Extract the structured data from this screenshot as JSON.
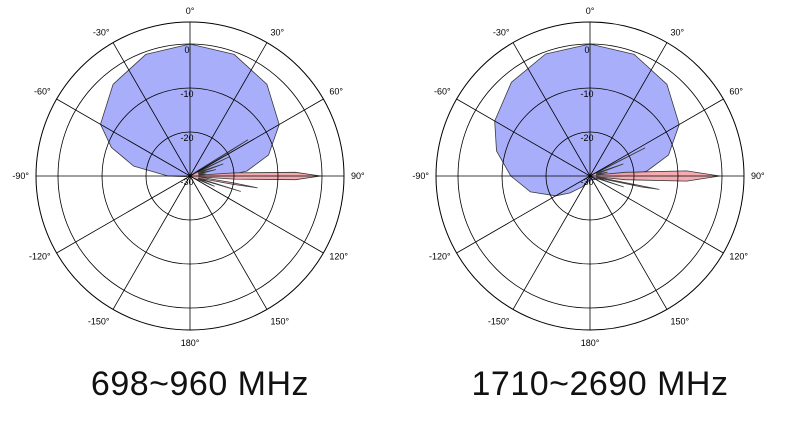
{
  "chart_data": [
    {
      "type": "polar",
      "caption": "698~960 MHz",
      "angle_unit": "degree",
      "angle_zero": "top",
      "angle_ticks": [
        0,
        30,
        60,
        90,
        120,
        150,
        180,
        -150,
        -120,
        -90,
        -60,
        -30
      ],
      "angle_tick_labels": [
        "0°",
        "30°",
        "60°",
        "90°",
        "120°",
        "150°",
        "180°",
        "-150°",
        "-120°",
        "-90°",
        "-60°",
        "-30°"
      ],
      "radial_ticks": [
        0,
        -10,
        -20,
        -30
      ],
      "radial_tick_labels": [
        "0",
        "-10",
        "-20",
        "-30"
      ],
      "rlim": [
        -30,
        5
      ],
      "grid": true,
      "series": [
        {
          "color": "#8f97f7",
          "points": [
            [
              0,
              0
            ],
            [
              20,
              -0.6
            ],
            [
              40,
              -2.8
            ],
            [
              60,
              -6.6
            ],
            [
              75,
              -11.5
            ],
            [
              85,
              -17
            ],
            [
              90,
              -22
            ],
            [
              95,
              -27
            ],
            [
              100,
              -29
            ],
            [
              135,
              -30
            ],
            [
              180,
              -30
            ],
            [
              225,
              -30
            ],
            [
              262,
              -29
            ],
            [
              270,
              -25
            ],
            [
              280,
              -17
            ],
            [
              290,
              -11
            ],
            [
              300,
              -6.5
            ],
            [
              320,
              -2.8
            ],
            [
              340,
              -0.6
            ]
          ]
        },
        {
          "color": "#f3a1a6",
          "points": [
            [
              0,
              -30
            ],
            [
              55,
              -28
            ],
            [
              58,
              -14.5
            ],
            [
              60,
              -28
            ],
            [
              64,
              -20
            ],
            [
              66,
              -28
            ],
            [
              70,
              -22
            ],
            [
              72,
              -28
            ],
            [
              76,
              -24
            ],
            [
              78,
              -28
            ],
            [
              82,
              -26.5
            ],
            [
              84,
              -28
            ],
            [
              86,
              -20
            ],
            [
              88,
              -6
            ],
            [
              90,
              -0.3
            ],
            [
              92,
              -6
            ],
            [
              94,
              -20
            ],
            [
              96,
              -28
            ],
            [
              99,
              -20
            ],
            [
              100,
              -14.5
            ],
            [
              101,
              -20
            ],
            [
              104,
              -28
            ],
            [
              107,
              -18
            ],
            [
              109,
              -28
            ],
            [
              113,
              -24
            ],
            [
              115,
              -28
            ],
            [
              120,
              -29
            ],
            [
              180,
              -30
            ]
          ]
        }
      ]
    },
    {
      "type": "polar",
      "caption": "1710~2690 MHz",
      "angle_unit": "degree",
      "angle_zero": "top",
      "angle_ticks": [
        0,
        30,
        60,
        90,
        120,
        150,
        180,
        -150,
        -120,
        -90,
        -60,
        -30
      ],
      "angle_tick_labels": [
        "0°",
        "30°",
        "60°",
        "90°",
        "120°",
        "150°",
        "180°",
        "-150°",
        "-120°",
        "-90°",
        "-60°",
        "-30°"
      ],
      "radial_ticks": [
        0,
        -10,
        -20,
        -30
      ],
      "radial_tick_labels": [
        "0",
        "-10",
        "-20",
        "-30"
      ],
      "rlim": [
        -30,
        5
      ],
      "grid": true,
      "series": [
        {
          "color": "#8f97f7",
          "points": [
            [
              0,
              0
            ],
            [
              20,
              -0.6
            ],
            [
              40,
              -2.8
            ],
            [
              60,
              -6.6
            ],
            [
              75,
              -11.5
            ],
            [
              85,
              -17
            ],
            [
              90,
              -22
            ],
            [
              95,
              -26
            ],
            [
              110,
              -28
            ],
            [
              150,
              -29
            ],
            [
              190,
              -29
            ],
            [
              215,
              -27
            ],
            [
              230,
              -24
            ],
            [
              240,
              -21
            ],
            [
              255,
              -16
            ],
            [
              270,
              -12
            ],
            [
              285,
              -8
            ],
            [
              300,
              -5
            ],
            [
              320,
              -2.2
            ],
            [
              340,
              -0.5
            ]
          ]
        },
        {
          "color": "#f3a1a6",
          "points": [
            [
              0,
              -30
            ],
            [
              60,
              -28.5
            ],
            [
              63,
              -16
            ],
            [
              65,
              -28.5
            ],
            [
              70,
              -22
            ],
            [
              73,
              -28.5
            ],
            [
              78,
              -26
            ],
            [
              81,
              -28.5
            ],
            [
              84,
              -22
            ],
            [
              87,
              -8
            ],
            [
              90,
              -0.5
            ],
            [
              93,
              -8
            ],
            [
              96,
              -22
            ],
            [
              98,
              -28.5
            ],
            [
              101,
              -14
            ],
            [
              102,
              -18
            ],
            [
              104,
              -28.5
            ],
            [
              108,
              -22
            ],
            [
              110,
              -28.5
            ],
            [
              180,
              -30
            ]
          ]
        }
      ]
    }
  ]
}
